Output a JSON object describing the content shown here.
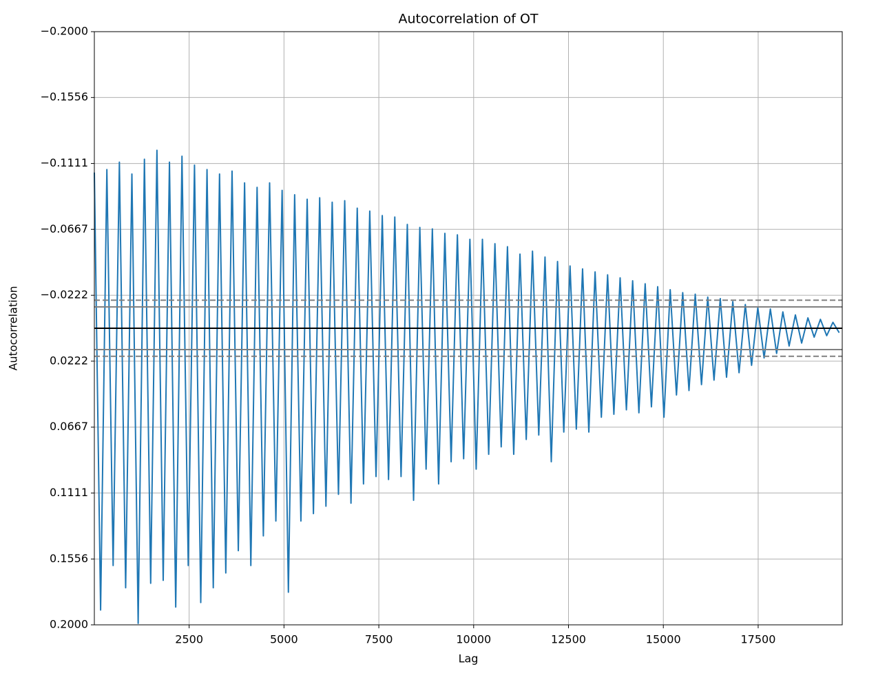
{
  "chart_data": {
    "type": "line",
    "title": "Autocorrelation of OT",
    "xlabel": "Lag",
    "ylabel": "Autocorrelation",
    "xlim": [
      1,
      19716
    ],
    "ylim": [
      0.2,
      -0.2
    ],
    "xticks": [
      2500,
      5000,
      7500,
      10000,
      12500,
      15000,
      17500
    ],
    "yticks": [
      {
        "value": -0.2,
        "label": "−0.2000"
      },
      {
        "value": -0.1556,
        "label": "−0.1556"
      },
      {
        "value": -0.1111,
        "label": "−0.1111"
      },
      {
        "value": -0.0667,
        "label": "−0.0667"
      },
      {
        "value": -0.0222,
        "label": "−0.0222"
      },
      {
        "value": 0.0222,
        "label": "0.0222"
      },
      {
        "value": 0.0667,
        "label": "0.0667"
      },
      {
        "value": 0.1111,
        "label": "0.1111"
      },
      {
        "value": 0.1556,
        "label": "0.1556"
      },
      {
        "value": 0.2,
        "label": "0.2000"
      }
    ],
    "grid": true,
    "hlines": [
      {
        "value": 0,
        "color": "#000000",
        "style": "solid"
      },
      {
        "value": 0.0144,
        "color": "#808080",
        "style": "solid"
      },
      {
        "value": -0.0144,
        "color": "#808080",
        "style": "solid"
      },
      {
        "value": 0.0189,
        "color": "#808080",
        "style": "dashed"
      },
      {
        "value": -0.0189,
        "color": "#808080",
        "style": "dashed"
      }
    ],
    "series": [
      {
        "color": "#1f77b4",
        "x": [
          1,
          166,
          331,
          496,
          661,
          826,
          991,
          1156,
          1321,
          1486,
          1651,
          1816,
          1981,
          2146,
          2311,
          2476,
          2641,
          2806,
          2971,
          3136,
          3301,
          3466,
          3631,
          3796,
          3961,
          4126,
          4291,
          4456,
          4621,
          4786,
          4951,
          5116,
          5281,
          5446,
          5611,
          5776,
          5941,
          6106,
          6271,
          6436,
          6601,
          6766,
          6931,
          7096,
          7261,
          7426,
          7591,
          7756,
          7921,
          8086,
          8251,
          8416,
          8581,
          8746,
          8911,
          9076,
          9241,
          9406,
          9571,
          9736,
          9901,
          10066,
          10231,
          10396,
          10561,
          10726,
          10891,
          11056,
          11221,
          11386,
          11551,
          11716,
          11881,
          12046,
          12211,
          12376,
          12541,
          12706,
          12871,
          13036,
          13201,
          13366,
          13531,
          13696,
          13861,
          14026,
          14191,
          14356,
          14521,
          14686,
          14851,
          15016,
          15181,
          15346,
          15511,
          15676,
          15841,
          16006,
          16171,
          16336,
          16501,
          16666,
          16831,
          16996,
          17161,
          17326,
          17491,
          17656,
          17821,
          17986,
          18151,
          18316,
          18481,
          18646,
          18811,
          18976,
          19141,
          19306,
          19471,
          19636
        ],
        "values": [
          -0.105,
          0.19,
          -0.107,
          0.16,
          -0.112,
          0.175,
          -0.104,
          0.199,
          -0.114,
          0.172,
          -0.12,
          0.17,
          -0.112,
          0.188,
          -0.116,
          0.16,
          -0.11,
          0.185,
          -0.107,
          0.175,
          -0.104,
          0.165,
          -0.106,
          0.15,
          -0.098,
          0.16,
          -0.095,
          0.14,
          -0.098,
          0.13,
          -0.093,
          0.178,
          -0.09,
          0.13,
          -0.087,
          0.125,
          -0.088,
          0.12,
          -0.085,
          0.112,
          -0.086,
          0.118,
          -0.081,
          0.105,
          -0.079,
          0.1,
          -0.076,
          0.102,
          -0.075,
          0.1,
          -0.07,
          0.116,
          -0.068,
          0.095,
          -0.067,
          0.105,
          -0.064,
          0.09,
          -0.063,
          0.088,
          -0.06,
          0.095,
          -0.06,
          0.085,
          -0.057,
          0.08,
          -0.055,
          0.085,
          -0.05,
          0.075,
          -0.052,
          0.072,
          -0.048,
          0.09,
          -0.045,
          0.07,
          -0.042,
          0.068,
          -0.04,
          0.07,
          -0.038,
          0.06,
          -0.036,
          0.058,
          -0.034,
          0.055,
          -0.032,
          0.057,
          -0.03,
          0.053,
          -0.028,
          0.06,
          -0.026,
          0.045,
          -0.024,
          0.042,
          -0.023,
          0.038,
          -0.021,
          0.035,
          -0.02,
          0.033,
          -0.018,
          0.03,
          -0.016,
          0.025,
          -0.014,
          0.02,
          -0.013,
          0.017,
          -0.011,
          0.012,
          -0.009,
          0.01,
          -0.007,
          0.006,
          -0.006,
          0.005,
          -0.004,
          0.003
        ]
      }
    ]
  }
}
